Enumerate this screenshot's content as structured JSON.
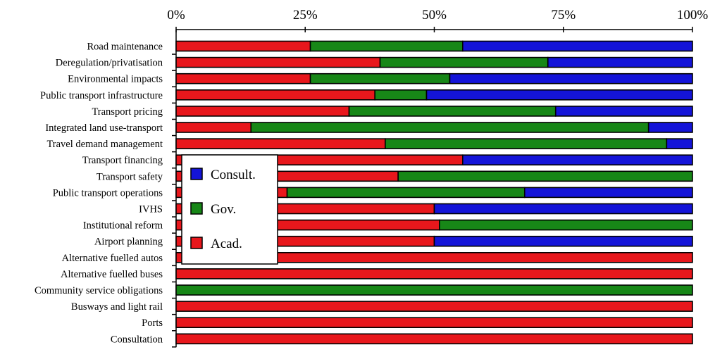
{
  "chart_data": {
    "type": "bar",
    "orientation": "horizontal",
    "stacked": true,
    "normalized": true,
    "xlim": [
      0,
      100
    ],
    "x_ticks": [
      "0%",
      "25%",
      "50%",
      "75%",
      "100%"
    ],
    "x_tick_values": [
      0,
      25,
      50,
      75,
      100
    ],
    "x_axis_position": "top",
    "grid": false,
    "legend_position": "left-inside",
    "categories": [
      "Road maintenance",
      "Deregulation/privatisation",
      "Environmental impacts",
      "Public transport infrastructure",
      "Transport pricing",
      "Integrated land use-transport",
      "Travel demand management",
      "Transport financing",
      "Transport safety",
      "Public transport operations",
      "IVHS",
      "Institutional reform",
      "Airport planning",
      "Alternative fuelled autos",
      "Alternative fuelled buses",
      "Community service obligations",
      "Busways and light rail",
      "Ports",
      "Consultation"
    ],
    "series": [
      {
        "name": "Acad.",
        "color": "#e8171c",
        "values": [
          26,
          39.5,
          26,
          38.5,
          33.5,
          14.5,
          40.5,
          55.5,
          43,
          21.5,
          50,
          51,
          50,
          100,
          100,
          0,
          100,
          100,
          100
        ]
      },
      {
        "name": "Gov.",
        "color": "#178717",
        "values": [
          29.5,
          32.5,
          27,
          10,
          40,
          77,
          54.5,
          0,
          57,
          46,
          0,
          49,
          0,
          0,
          0,
          100,
          0,
          0,
          0
        ]
      },
      {
        "name": "Consult.",
        "color": "#1414d8",
        "values": [
          44.5,
          28,
          47,
          51.5,
          26.5,
          8.5,
          5,
          44.5,
          0,
          32.5,
          50,
          0,
          50,
          0,
          0,
          0,
          0,
          0,
          0
        ]
      }
    ],
    "legend_order": [
      "Consult.",
      "Gov.",
      "Acad."
    ]
  }
}
